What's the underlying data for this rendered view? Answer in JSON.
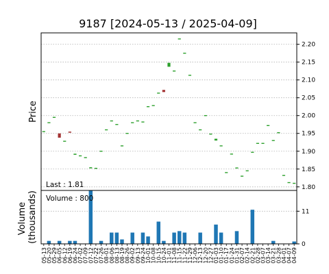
{
  "chart_data": {
    "type": "candlestick",
    "title": "9187   [2024-05-13 / 2025-04-09]",
    "price_axis_label": "Price",
    "volume_axis_label": "Volume\n(thousands)",
    "last_label": "Last : 1.81",
    "volume_label": "Volume : 800",
    "price_ylim": [
      1.79,
      2.232
    ],
    "price_ticks": [
      1.8,
      1.85,
      1.9,
      1.95,
      2.0,
      2.05,
      2.1,
      2.15,
      2.2
    ],
    "volume_ylim": [
      0,
      18
    ],
    "volume_ticks": [
      0,
      11
    ],
    "grid": true,
    "colors": {
      "up": "#2ca02c",
      "down": "#a33333",
      "volume": "#1f77b4"
    },
    "x_tick_labels": [
      "05-13",
      "05-20",
      "05-29",
      "06-05",
      "06-12",
      "06-19",
      "06-24",
      "07-02",
      "07-09",
      "07-12",
      "07-22",
      "07-26",
      "08-01",
      "08-06",
      "08-13",
      "08-19",
      "08-26",
      "09-02",
      "09-13",
      "09-24",
      "10-01",
      "10-08",
      "10-15",
      "10-24",
      "11-01",
      "11-08",
      "11-15",
      "11-22",
      "11-29",
      "12-06",
      "12-13",
      "12-20",
      "12-27",
      "01-03",
      "01-10",
      "01-17",
      "01-24",
      "01-31",
      "02-07",
      "02-14",
      "02-21",
      "02-28",
      "03-07",
      "03-14",
      "03-21",
      "03-28",
      "04-01",
      "04-07",
      "04-09"
    ],
    "candles": [
      {
        "o": 1.955,
        "c": 1.955,
        "v": 0
      },
      {
        "o": 1.98,
        "c": 1.98,
        "v": 1
      },
      {
        "o": 1.995,
        "c": 1.995,
        "v": 0
      },
      {
        "o": 1.95,
        "c": 1.938,
        "v": 1
      },
      {
        "o": 1.928,
        "c": 1.928,
        "v": 0
      },
      {
        "o": 1.955,
        "c": 1.952,
        "v": 1
      },
      {
        "o": 1.89,
        "c": 1.893,
        "v": 1
      },
      {
        "o": 1.887,
        "c": 1.887,
        "v": 0
      },
      {
        "o": 1.882,
        "c": 1.882,
        "v": 0
      },
      {
        "o": 1.852,
        "c": 1.855,
        "v": 18
      },
      {
        "o": 1.852,
        "c": 1.852,
        "v": 0
      },
      {
        "o": 1.9,
        "c": 1.9,
        "v": 1
      },
      {
        "o": 1.96,
        "c": 1.96,
        "v": 0
      },
      {
        "o": 1.985,
        "c": 1.985,
        "v": 3.8
      },
      {
        "o": 1.975,
        "c": 1.975,
        "v": 3.8
      },
      {
        "o": 1.915,
        "c": 1.915,
        "v": 1.5
      },
      {
        "o": 1.95,
        "c": 1.95,
        "v": 0
      },
      {
        "o": 1.98,
        "c": 1.98,
        "v": 3.8
      },
      {
        "o": 1.985,
        "c": 1.985,
        "v": 0
      },
      {
        "o": 1.982,
        "c": 1.982,
        "v": 3.8
      },
      {
        "o": 2.025,
        "c": 2.025,
        "v": 2.5
      },
      {
        "o": 2.028,
        "c": 2.028,
        "v": 0
      },
      {
        "o": 2.063,
        "c": 2.063,
        "v": 7.5
      },
      {
        "o": 2.072,
        "c": 2.066,
        "v": 1
      },
      {
        "o": 2.137,
        "c": 2.148,
        "v": 0
      },
      {
        "o": 2.125,
        "c": 2.125,
        "v": 3.8
      },
      {
        "o": 2.215,
        "c": 2.215,
        "v": 4.3
      },
      {
        "o": 2.175,
        "c": 2.175,
        "v": 3.8
      },
      {
        "o": 2.113,
        "c": 2.113,
        "v": 0
      },
      {
        "o": 1.98,
        "c": 1.98,
        "v": 0
      },
      {
        "o": 1.96,
        "c": 1.96,
        "v": 3.8
      },
      {
        "o": 2.0,
        "c": 2.0,
        "v": 0
      },
      {
        "o": 1.948,
        "c": 1.948,
        "v": 0
      },
      {
        "o": 1.93,
        "c": 1.935,
        "v": 6.5
      },
      {
        "o": 1.915,
        "c": 1.915,
        "v": 3.8
      },
      {
        "o": 1.84,
        "c": 1.84,
        "v": 0
      },
      {
        "o": 1.892,
        "c": 1.892,
        "v": 0
      },
      {
        "o": 1.853,
        "c": 1.853,
        "v": 4.3
      },
      {
        "o": 1.83,
        "c": 1.83,
        "v": 0
      },
      {
        "o": 1.845,
        "c": 1.845,
        "v": 0
      },
      {
        "o": 1.897,
        "c": 1.897,
        "v": 11.5
      },
      {
        "o": 1.922,
        "c": 1.922,
        "v": 0
      },
      {
        "o": 1.922,
        "c": 1.922,
        "v": 0
      },
      {
        "o": 1.972,
        "c": 1.972,
        "v": 0
      },
      {
        "o": 1.93,
        "c": 1.93,
        "v": 1
      },
      {
        "o": 1.952,
        "c": 1.952,
        "v": 0
      },
      {
        "o": 1.832,
        "c": 1.832,
        "v": 0
      },
      {
        "o": 1.812,
        "c": 1.812,
        "v": 0
      },
      {
        "o": 1.81,
        "c": 1.81,
        "v": 0.8
      }
    ]
  }
}
